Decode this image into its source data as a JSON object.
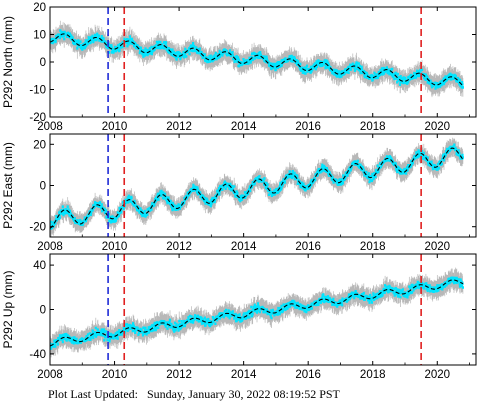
{
  "footer": {
    "label": "Plot Last Updated:",
    "timestamp": "Sunday, January 30, 2022 08:19:52 PST"
  },
  "colors": {
    "observations": "#00e5ff",
    "error_bars": "#b8b8b8",
    "model": "#000000",
    "blue_event": "#1f2bd6",
    "red_event": "#e02020",
    "frame": "#000000"
  },
  "chart_data": [
    {
      "type": "scatter",
      "name": "north",
      "ylabel": "P292 North (mm)",
      "xlim": [
        2008,
        2021.2
      ],
      "ylim": [
        -20,
        20
      ],
      "xticks": [
        2008,
        2010,
        2012,
        2014,
        2016,
        2018,
        2020
      ],
      "yticks": [
        -20,
        -10,
        0,
        10,
        20
      ],
      "trend": {
        "start_value": 9,
        "rate_mm_per_yr": -1.3,
        "seasonal_amplitude": 1.8
      },
      "series": [
        {
          "name": "daily positions",
          "x": [
            2008.0,
            2008.5,
            2009.0,
            2009.5,
            2010.0,
            2010.5,
            2011.0,
            2011.5,
            2012.0,
            2012.5,
            2013.0,
            2013.5,
            2014.0,
            2014.5,
            2015.0,
            2015.5,
            2016.0,
            2016.5,
            2017.0,
            2017.5,
            2018.0,
            2018.5,
            2019.0,
            2019.5,
            2020.0,
            2020.5,
            2020.8
          ],
          "y": [
            9,
            6,
            7,
            5,
            4,
            1,
            0,
            -1,
            0,
            -2,
            -1,
            -3,
            -1,
            -4,
            -2,
            -4,
            -3,
            -5,
            -4,
            -7,
            -5,
            -9,
            -7,
            -9,
            -6,
            -8,
            -7
          ]
        },
        {
          "name": "model",
          "x": [
            2008.0,
            2009.0,
            2010.0,
            2011.0,
            2012.0,
            2013.0,
            2014.0,
            2015.0,
            2016.0,
            2017.0,
            2018.0,
            2019.0,
            2020.0,
            2020.8
          ],
          "y": [
            9,
            7.5,
            4,
            0.5,
            -0.5,
            -1.5,
            -2,
            -3,
            -3.5,
            -4.5,
            -6,
            -7.5,
            -6.5,
            -7
          ]
        }
      ],
      "events": [
        {
          "x": 2009.8,
          "color": "blue"
        },
        {
          "x": 2010.3,
          "color": "red"
        },
        {
          "x": 2019.5,
          "color": "red"
        }
      ]
    },
    {
      "type": "scatter",
      "name": "east",
      "ylabel": "P292 East (mm)",
      "xlim": [
        2008,
        2021.2
      ],
      "ylim": [
        -25,
        25
      ],
      "xticks": [
        2008,
        2010,
        2012,
        2014,
        2016,
        2018,
        2020
      ],
      "yticks": [
        -20,
        0,
        20
      ],
      "trend": {
        "start_value": -17,
        "rate_mm_per_yr": 2.5,
        "seasonal_amplitude": 4
      },
      "series": [
        {
          "name": "daily positions",
          "x": [
            2008.0,
            2008.5,
            2009.0,
            2009.5,
            2010.0,
            2010.5,
            2011.0,
            2011.5,
            2012.0,
            2012.5,
            2013.0,
            2013.5,
            2014.0,
            2014.5,
            2015.0,
            2015.5,
            2016.0,
            2016.5,
            2017.0,
            2017.5,
            2018.0,
            2018.5,
            2019.0,
            2019.5,
            2020.0,
            2020.5,
            2020.8
          ],
          "y": [
            -17,
            -13,
            -11,
            -6,
            -10,
            -6,
            -6,
            -2,
            -3,
            0,
            -1,
            4,
            1,
            6,
            3,
            9,
            5,
            10,
            6,
            12,
            7,
            14,
            9,
            12,
            9,
            14,
            15
          ]
        },
        {
          "name": "model",
          "x": [
            2008.0,
            2009.0,
            2010.0,
            2011.0,
            2012.0,
            2013.0,
            2014.0,
            2015.0,
            2016.0,
            2017.0,
            2018.0,
            2019.0,
            2020.0,
            2020.8
          ],
          "y": [
            -17,
            -12,
            -9,
            -5,
            -3,
            0,
            2,
            4,
            6,
            8,
            10,
            11,
            11,
            14
          ]
        }
      ],
      "events": [
        {
          "x": 2009.8,
          "color": "blue"
        },
        {
          "x": 2010.3,
          "color": "red"
        },
        {
          "x": 2019.5,
          "color": "red"
        }
      ]
    },
    {
      "type": "scatter",
      "name": "up",
      "ylabel": "P292 Up (mm)",
      "xlim": [
        2008,
        2021.2
      ],
      "ylim": [
        -50,
        50
      ],
      "xticks": [
        2008,
        2010,
        2012,
        2014,
        2016,
        2018,
        2020
      ],
      "yticks": [
        -40,
        0,
        40
      ],
      "trend": {
        "start_value": -30,
        "rate_mm_per_yr": 4.3,
        "seasonal_amplitude": 3
      },
      "series": [
        {
          "name": "daily positions",
          "x": [
            2008.0,
            2008.5,
            2009.0,
            2009.5,
            2010.0,
            2010.5,
            2011.0,
            2011.5,
            2012.0,
            2012.5,
            2013.0,
            2013.5,
            2014.0,
            2014.5,
            2015.0,
            2015.5,
            2016.0,
            2016.5,
            2017.0,
            2017.5,
            2018.0,
            2018.5,
            2019.0,
            2019.5,
            2020.0,
            2020.5,
            2020.8
          ],
          "y": [
            -30,
            -28,
            -29,
            -24,
            -22,
            -21,
            -19,
            -15,
            -14,
            -10,
            -10,
            -6,
            -6,
            0,
            2,
            6,
            8,
            12,
            12,
            18,
            18,
            22,
            22,
            28,
            26,
            24,
            25
          ]
        },
        {
          "name": "model",
          "x": [
            2008.0,
            2009.0,
            2010.0,
            2011.0,
            2012.0,
            2013.0,
            2014.0,
            2015.0,
            2016.0,
            2017.0,
            2018.0,
            2019.0,
            2020.0,
            2020.8
          ],
          "y": [
            -30,
            -28,
            -22,
            -19,
            -14,
            -10,
            -6,
            2,
            8,
            12,
            18,
            22,
            26,
            25
          ]
        }
      ],
      "events": [
        {
          "x": 2009.8,
          "color": "blue"
        },
        {
          "x": 2010.3,
          "color": "red"
        },
        {
          "x": 2019.5,
          "color": "red"
        }
      ]
    }
  ]
}
